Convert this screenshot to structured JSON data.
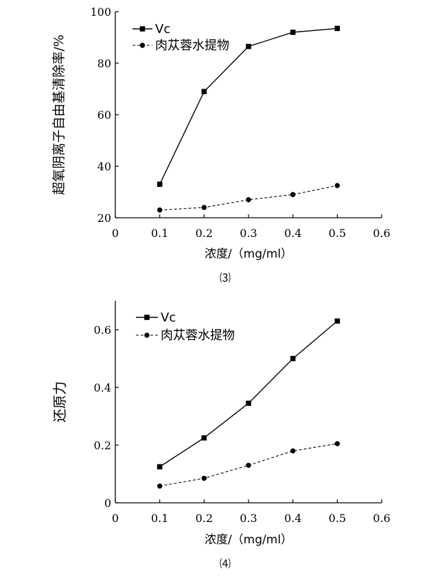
{
  "chart_data": [
    {
      "type": "line",
      "caption": "⑶",
      "xlabel": "浓度/（mg/ml）",
      "ylabel": "超氧阴离子自由基清除率/%",
      "xlim": [
        0,
        0.6
      ],
      "ylim": [
        20,
        100
      ],
      "xticks": [
        "0",
        "0.1",
        "0.2",
        "0.3",
        "0.4",
        "0.5",
        "0.6"
      ],
      "yticks": [
        "20",
        "40",
        "60",
        "80",
        "100"
      ],
      "x": [
        0.1,
        0.2,
        0.3,
        0.4,
        0.5
      ],
      "grid": false,
      "legend_position": "top-left",
      "series": [
        {
          "name": "Vc",
          "marker": "square",
          "line": "solid",
          "values": [
            33,
            69,
            86.5,
            92,
            93.5
          ]
        },
        {
          "name": "肉苁蓉水提物",
          "marker": "circle",
          "line": "dashed",
          "values": [
            23,
            24,
            27,
            29,
            32.5
          ]
        }
      ]
    },
    {
      "type": "line",
      "caption": "⑷",
      "xlabel": "浓度/（mg/ml）",
      "ylabel": "还原力",
      "xlim": [
        0,
        0.6
      ],
      "ylim": [
        0,
        0.7
      ],
      "xticks": [
        "0",
        "0.1",
        "0.2",
        "0.3",
        "0.4",
        "0.5",
        "0.6"
      ],
      "yticks": [
        "0",
        "0.2",
        "0.4",
        "0.6"
      ],
      "x": [
        0.1,
        0.2,
        0.3,
        0.4,
        0.5
      ],
      "grid": false,
      "legend_position": "top-left",
      "series": [
        {
          "name": "Vc",
          "marker": "square",
          "line": "solid",
          "values": [
            0.125,
            0.225,
            0.345,
            0.5,
            0.63
          ]
        },
        {
          "name": "肉苁蓉水提物",
          "marker": "circle",
          "line": "dashed",
          "values": [
            0.058,
            0.085,
            0.13,
            0.18,
            0.205
          ]
        }
      ]
    }
  ]
}
